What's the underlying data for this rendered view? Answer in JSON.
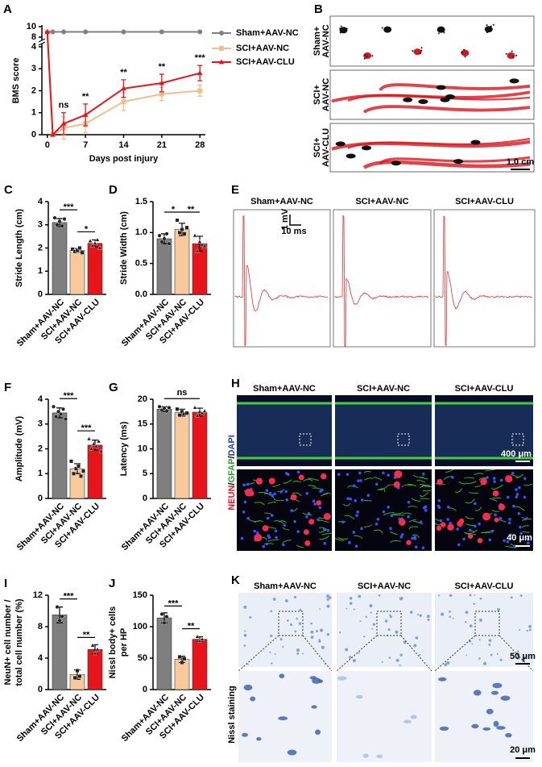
{
  "chart_data": [
    {
      "panel": "A",
      "type": "line",
      "x_label": "Days post injury",
      "y_label": "BMS score",
      "x": [
        0,
        1,
        3,
        7,
        14,
        21,
        28
      ],
      "xlim": [
        -1,
        29
      ],
      "xticks": [
        0,
        7,
        14,
        21,
        28
      ],
      "ylim": [
        0,
        10
      ],
      "ybreak": [
        4,
        8
      ],
      "yticks": [
        0,
        1,
        2,
        3,
        4,
        8,
        10
      ],
      "legend": "right",
      "series": [
        {
          "name": "Sham+AAV-NC",
          "color": "#808080",
          "marker": "circle",
          "values": [
            9,
            9,
            9,
            9,
            9,
            9,
            9
          ]
        },
        {
          "name": "SCI+AAV-NC",
          "color": "#f2be8c",
          "marker": "square",
          "values": [
            9,
            0,
            0.3,
            0.5,
            1.5,
            1.85,
            2.0
          ],
          "errors": [
            0,
            0,
            0.5,
            0.4,
            0.4,
            0.3,
            0.25
          ]
        },
        {
          "name": "SCI+AAV-CLU",
          "color": "#e8141c",
          "marker": "triangle",
          "values": [
            9,
            0,
            0.5,
            0.9,
            2.1,
            2.35,
            2.8
          ],
          "errors": [
            0,
            0,
            0.5,
            0.5,
            0.4,
            0.4,
            0.35
          ]
        }
      ],
      "annotations": [
        null,
        null,
        "ns",
        "**",
        "**",
        "**",
        "***"
      ]
    },
    {
      "panel": "C",
      "type": "bar",
      "y_label": [
        "Stride Length (cm)"
      ],
      "categories": [
        "Sham+AAV-NC",
        "SCI+AAV-NC",
        "SCI+AAV-CLU"
      ],
      "colors": [
        "#7f7f7f",
        "#f7c99b",
        "#e8141c"
      ],
      "ylim": [
        0,
        4
      ],
      "yticks": [
        0,
        1,
        2,
        3,
        4
      ],
      "values": [
        3.1,
        1.9,
        2.2
      ],
      "errors": [
        0.17,
        0.08,
        0.15
      ],
      "points": [
        [
          3.3,
          3.0,
          3.15,
          2.95,
          3.25
        ],
        [
          1.95,
          1.85,
          1.9,
          2.0,
          1.8
        ],
        [
          2.3,
          2.1,
          2.2,
          2.35,
          2.0
        ]
      ],
      "annotations": [
        "***",
        "*"
      ]
    },
    {
      "panel": "D",
      "type": "bar",
      "y_label": [
        "Stride Width (cm)"
      ],
      "categories": [
        "Sham+AAV-NC",
        "SCI+AAV-NC",
        "SCI+AAV-CLU"
      ],
      "colors": [
        "#7f7f7f",
        "#f7c99b",
        "#e8141c"
      ],
      "ylim": [
        0,
        1.5
      ],
      "yticks": [
        {
          "value": 0,
          "label": "0.0"
        },
        0.5,
        {
          "value": 1,
          "label": "1.0"
        },
        1.5
      ],
      "values": [
        0.9,
        1.05,
        0.82
      ],
      "errors": [
        0.08,
        0.1,
        0.12
      ],
      "points": [
        [
          0.95,
          0.85,
          0.9,
          0.98,
          0.82
        ],
        [
          1.2,
          1.0,
          1.05,
          0.98,
          1.08
        ],
        [
          0.95,
          0.7,
          0.85,
          0.8,
          0.78
        ]
      ],
      "annotations": [
        "*",
        "**"
      ]
    },
    {
      "panel": "F",
      "type": "bar",
      "y_label": [
        "Amplitude (mV)"
      ],
      "categories": [
        "Sham+AAV-NC",
        "SCI+AAV-NC",
        "SCI+AAV-CLU"
      ],
      "colors": [
        "#7f7f7f",
        "#f7c99b",
        "#e8141c"
      ],
      "ylim": [
        0,
        4
      ],
      "yticks": [
        0,
        1,
        2,
        3,
        4
      ],
      "values": [
        3.45,
        1.2,
        2.15
      ],
      "errors": [
        0.2,
        0.2,
        0.2
      ],
      "points": [
        [
          3.7,
          3.3,
          3.5,
          3.4,
          3.6,
          3.2
        ],
        [
          1.5,
          1.0,
          1.2,
          1.3,
          0.9,
          1.1
        ],
        [
          2.4,
          2.0,
          2.2,
          2.1,
          2.3,
          1.9
        ]
      ],
      "annotations": [
        "***",
        "***"
      ]
    },
    {
      "panel": "G",
      "type": "bar",
      "y_label": [
        "Latency (ms)"
      ],
      "categories": [
        "Sham+AAV-NC",
        "SCI+AAV-NC",
        "SCI+AAV-CLU"
      ],
      "colors": [
        "#7f7f7f",
        "#f7c99b",
        "#e8141c"
      ],
      "ylim": [
        0,
        20
      ],
      "yticks": [
        0,
        5,
        10,
        15,
        20
      ],
      "values": [
        18,
        17.3,
        17.4
      ],
      "errors": [
        0.5,
        0.7,
        0.8
      ],
      "points": [
        [
          18.5,
          17.8,
          18.2,
          17.6,
          18.3
        ],
        [
          18,
          16.8,
          17.5,
          17,
          17.2
        ],
        [
          18.3,
          16.7,
          17.5,
          17.2,
          17.6
        ]
      ],
      "annotations": [
        "ns"
      ]
    },
    {
      "panel": "I",
      "type": "bar",
      "y_label": [
        "NeuN+ cell number /",
        "total cell number (%)"
      ],
      "categories": [
        "Sham+AAV-NC",
        "SCI+AAV-NC",
        "SCI+AAV-CLU"
      ],
      "colors": [
        "#7f7f7f",
        "#f7c99b",
        "#e8141c"
      ],
      "ylim": [
        0,
        12
      ],
      "yticks": [
        0,
        4,
        8,
        12
      ],
      "values": [
        9.5,
        1.9,
        5.1
      ],
      "errors": [
        1,
        0.6,
        0.6
      ],
      "points": [
        [
          10.5,
          8.8,
          9.3
        ],
        [
          1.5,
          2.4,
          1.7
        ],
        [
          5.6,
          4.6,
          5.1
        ]
      ],
      "annotations": [
        "***",
        "**"
      ]
    },
    {
      "panel": "J",
      "type": "bar",
      "y_label": [
        "Nissl body+ cells",
        "per HP"
      ],
      "categories": [
        "Sham+AAV-NC",
        "SCI+AAV-NC",
        "SCI+AAV-CLU"
      ],
      "colors": [
        "#7f7f7f",
        "#f7c99b",
        "#e8141c"
      ],
      "ylim": [
        0,
        150
      ],
      "yticks": [
        0,
        50,
        100,
        150
      ],
      "values": [
        114,
        48,
        80
      ],
      "errors": [
        8,
        5,
        4
      ],
      "points": [
        [
          120,
          106,
          116
        ],
        [
          52,
          43,
          49
        ],
        [
          84,
          77,
          80
        ]
      ],
      "annotations": [
        "***",
        "**"
      ]
    }
  ],
  "image_panels": {
    "B": {
      "panel": "B",
      "rows": [
        [
          "Sham+",
          "AAV-NC"
        ],
        [
          "SCI+",
          "AAV-NC"
        ],
        [
          "SCI+",
          "AAV-CLU"
        ]
      ],
      "scale_bar": "1.0 cm"
    },
    "E": {
      "panel": "E",
      "columns": [
        "Sham+AAV-NC",
        "SCI+AAV-NC",
        "SCI+AAV-CLU"
      ],
      "scale_y": "1 mV",
      "scale_x": "10 ms"
    },
    "H": {
      "panel": "H",
      "columns": [
        "Sham+AAV-NC",
        "SCI+AAV-NC",
        "SCI+AAV-CLU"
      ],
      "stain": [
        "NEUN",
        "/",
        "GFAP",
        "/",
        "DAPI"
      ],
      "scale_bars": [
        "400 μm",
        "40 μm"
      ]
    },
    "K": {
      "panel": "K",
      "columns": [
        "Sham+AAV-NC",
        "SCI+AAV-NC",
        "SCI+AAV-CLU"
      ],
      "stain": "Nissl staining",
      "scale_bars": [
        "50 μm",
        "20 μm"
      ]
    }
  }
}
